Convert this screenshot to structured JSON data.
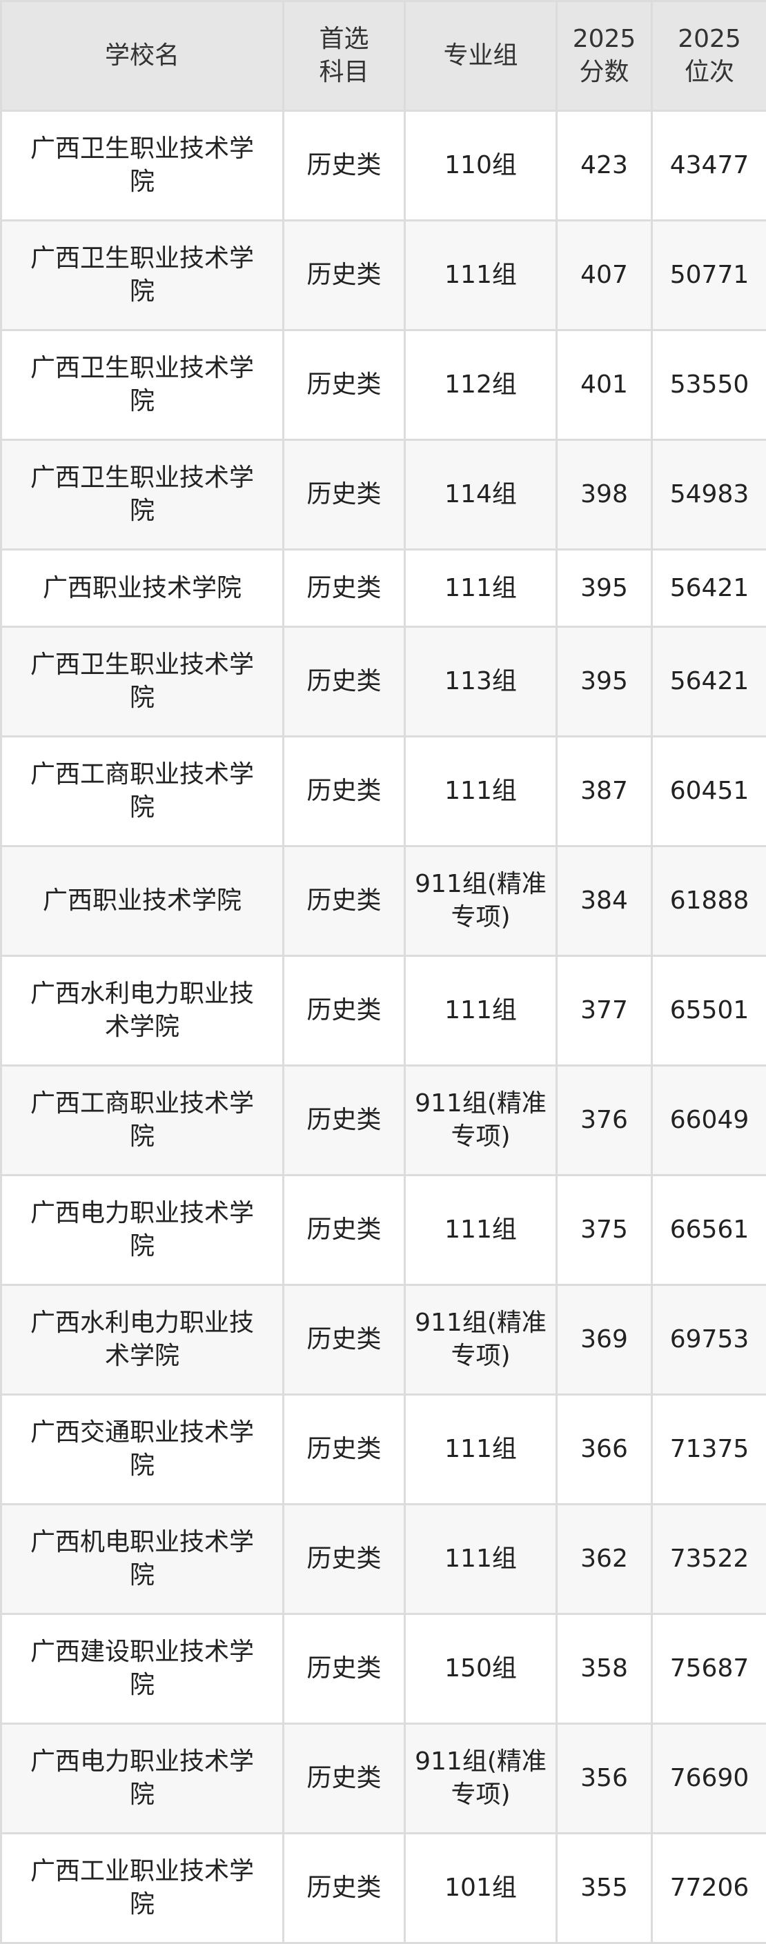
{
  "table": {
    "headers": [
      "学校名",
      "首选科目",
      "专业组",
      "2025分数",
      "2025位次"
    ],
    "header_lines": [
      [
        "学校名"
      ],
      [
        "首选",
        "科目"
      ],
      [
        "专业组"
      ],
      [
        "2025",
        "分数"
      ],
      [
        "2025",
        "位次"
      ]
    ],
    "rows": [
      {
        "school": "广西卫生职业技术学院",
        "subject": "历史类",
        "group": "110组",
        "score": "423",
        "rank": "43477"
      },
      {
        "school": "广西卫生职业技术学院",
        "subject": "历史类",
        "group": "111组",
        "score": "407",
        "rank": "50771"
      },
      {
        "school": "广西卫生职业技术学院",
        "subject": "历史类",
        "group": "112组",
        "score": "401",
        "rank": "53550"
      },
      {
        "school": "广西卫生职业技术学院",
        "subject": "历史类",
        "group": "114组",
        "score": "398",
        "rank": "54983"
      },
      {
        "school": "广西职业技术学院",
        "subject": "历史类",
        "group": "111组",
        "score": "395",
        "rank": "56421"
      },
      {
        "school": "广西卫生职业技术学院",
        "subject": "历史类",
        "group": "113组",
        "score": "395",
        "rank": "56421"
      },
      {
        "school": "广西工商职业技术学院",
        "subject": "历史类",
        "group": "111组",
        "score": "387",
        "rank": "60451"
      },
      {
        "school": "广西职业技术学院",
        "subject": "历史类",
        "group": "911组(精准专项)",
        "score": "384",
        "rank": "61888"
      },
      {
        "school": "广西水利电力职业技术学院",
        "subject": "历史类",
        "group": "111组",
        "score": "377",
        "rank": "65501"
      },
      {
        "school": "广西工商职业技术学院",
        "subject": "历史类",
        "group": "911组(精准专项)",
        "score": "376",
        "rank": "66049"
      },
      {
        "school": "广西电力职业技术学院",
        "subject": "历史类",
        "group": "111组",
        "score": "375",
        "rank": "66561"
      },
      {
        "school": "广西水利电力职业技术学院",
        "subject": "历史类",
        "group": "911组(精准专项)",
        "score": "369",
        "rank": "69753"
      },
      {
        "school": "广西交通职业技术学院",
        "subject": "历史类",
        "group": "111组",
        "score": "366",
        "rank": "71375"
      },
      {
        "school": "广西机电职业技术学院",
        "subject": "历史类",
        "group": "111组",
        "score": "362",
        "rank": "73522"
      },
      {
        "school": "广西建设职业技术学院",
        "subject": "历史类",
        "group": "150组",
        "score": "358",
        "rank": "75687"
      },
      {
        "school": "广西电力职业技术学院",
        "subject": "历史类",
        "group": "911组(精准专项)",
        "score": "356",
        "rank": "76690"
      },
      {
        "school": "广西工业职业技术学院",
        "subject": "历史类",
        "group": "101组",
        "score": "355",
        "rank": "77206"
      }
    ]
  }
}
